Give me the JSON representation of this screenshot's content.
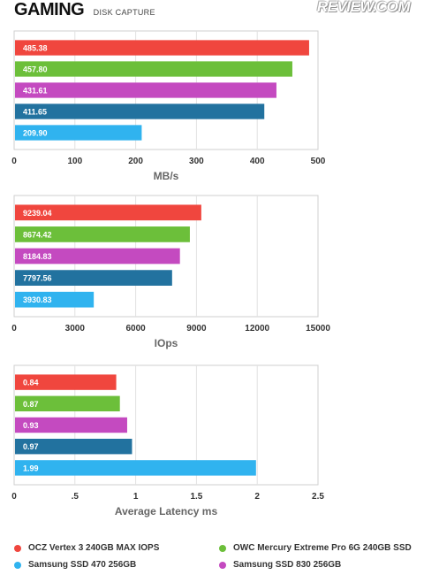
{
  "header": {
    "title": "GAMING",
    "subtitle": "DISK CAPTURE",
    "brand": "REVIEW.COM"
  },
  "colors": [
    "#f0463e",
    "#6cbf3a",
    "#c44ac0",
    "#22729f",
    "#30b3ef"
  ],
  "legend": [
    {
      "label": "OCZ Vertex 3 240GB MAX IOPS",
      "color": "#f0463e"
    },
    {
      "label": "OWC Mercury Extreme Pro 6G 240GB SSD",
      "color": "#6cbf3a"
    },
    {
      "label": "Samsung SSD 470 256GB",
      "color": "#30b3ef"
    },
    {
      "label": "Samsung SSD 830 256GB",
      "color": "#c44ac0"
    }
  ],
  "chart_data": [
    {
      "type": "bar",
      "orientation": "horizontal",
      "categories": [
        "OCZ Vertex 3 240GB MAX IOPS",
        "OWC Mercury Extreme Pro 6G 240GB SSD",
        "Samsung SSD 830 256GB",
        "",
        "Samsung SSD 470 256GB"
      ],
      "values": [
        485.38,
        457.8,
        431.61,
        411.65,
        209.9
      ],
      "labels": [
        "485.38",
        "457.80",
        "431.61",
        "411.65",
        "209.90"
      ],
      "xlabel": "MB/s",
      "xlim": [
        0,
        500
      ],
      "ticks": [
        "0",
        "100",
        "200",
        "300",
        "400",
        "500"
      ],
      "tick_values": [
        0,
        100,
        200,
        300,
        400,
        500
      ]
    },
    {
      "type": "bar",
      "orientation": "horizontal",
      "categories": [
        "OCZ Vertex 3 240GB MAX IOPS",
        "OWC Mercury Extreme Pro 6G 240GB SSD",
        "Samsung SSD 830 256GB",
        "",
        "Samsung SSD 470 256GB"
      ],
      "values": [
        9239.04,
        8674.42,
        8184.83,
        7797.56,
        3930.83
      ],
      "labels": [
        "9239.04",
        "8674.42",
        "8184.83",
        "7797.56",
        "3930.83"
      ],
      "xlabel": "IOps",
      "xlim": [
        0,
        15000
      ],
      "ticks": [
        "0",
        "3000",
        "6000",
        "9000",
        "12000",
        "15000"
      ],
      "tick_values": [
        0,
        3000,
        6000,
        9000,
        12000,
        15000
      ]
    },
    {
      "type": "bar",
      "orientation": "horizontal",
      "categories": [
        "OCZ Vertex 3 240GB MAX IOPS",
        "OWC Mercury Extreme Pro 6G 240GB SSD",
        "Samsung SSD 830 256GB",
        "",
        "Samsung SSD 470 256GB"
      ],
      "values": [
        0.84,
        0.87,
        0.93,
        0.97,
        1.99
      ],
      "labels": [
        "0.84",
        "0.87",
        "0.93",
        "0.97",
        "1.99"
      ],
      "xlabel": "Average Latency ms",
      "xlim": [
        0,
        2.5
      ],
      "ticks": [
        "0",
        ".5",
        "1",
        "1.5",
        "2",
        "2.5"
      ],
      "tick_values": [
        0,
        0.5,
        1,
        1.5,
        2,
        2.5
      ]
    }
  ]
}
